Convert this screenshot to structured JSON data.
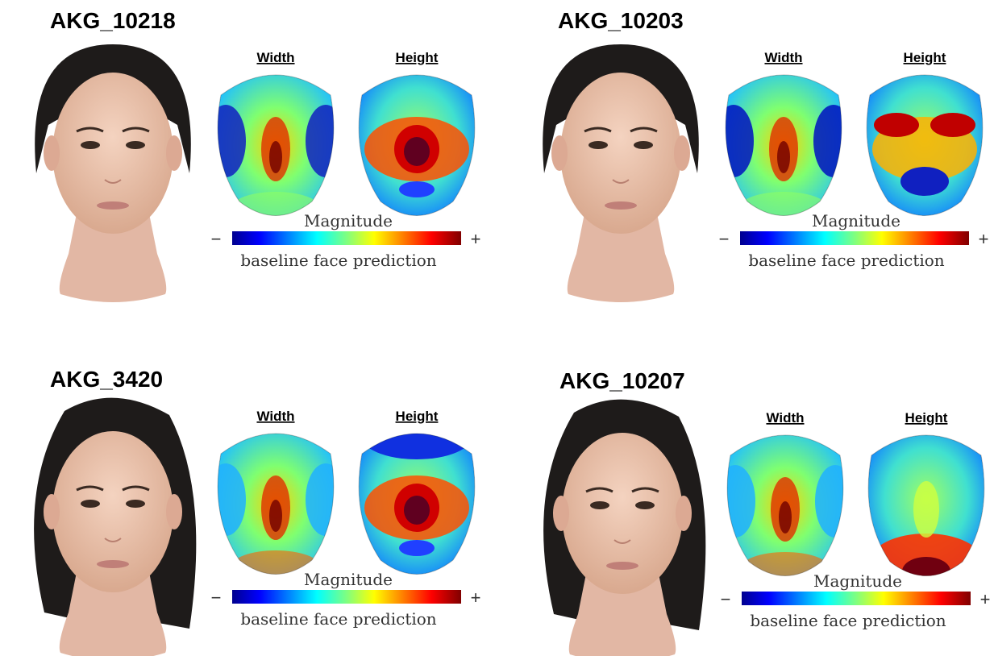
{
  "panels": [
    {
      "id": "AKG_10218",
      "width_label": "Width",
      "height_label": "Height",
      "scale_label": "Magnitude",
      "minus": "−",
      "plus": "+",
      "caption": "baseline face prediction"
    },
    {
      "id": "AKG_10203",
      "width_label": "Width",
      "height_label": "Height",
      "scale_label": "Magnitude",
      "minus": "−",
      "plus": "+",
      "caption": "baseline face prediction"
    },
    {
      "id": "AKG_3420",
      "width_label": "Width",
      "height_label": "Height",
      "scale_label": "Magnitude",
      "minus": "−",
      "plus": "+",
      "caption": "baseline face prediction"
    },
    {
      "id": "AKG_10207",
      "width_label": "Width",
      "height_label": "Height",
      "scale_label": "Magnitude",
      "minus": "−",
      "plus": "+",
      "caption": "baseline face prediction"
    }
  ]
}
